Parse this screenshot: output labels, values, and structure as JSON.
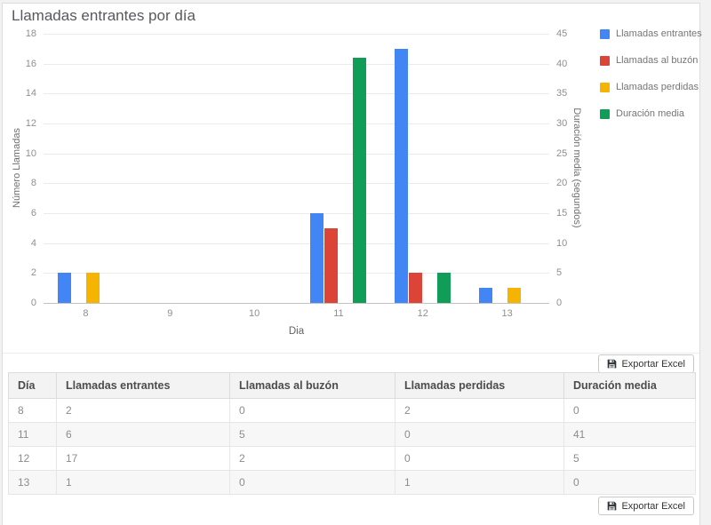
{
  "title": "Llamadas entrantes por día",
  "export_button_label": "Exportar Excel",
  "chart_data": {
    "type": "bar",
    "title": "Llamadas entrantes por día",
    "categories": [
      "8",
      "9",
      "10",
      "11",
      "12",
      "13"
    ],
    "xlabel": "Dia",
    "grid": true,
    "legend_position": "right",
    "y_left": {
      "label": "Número Llamadas",
      "max": 18,
      "ticks": [
        0,
        2,
        4,
        6,
        8,
        10,
        12,
        14,
        16,
        18
      ]
    },
    "y_right": {
      "label": "Duración media (segundos)",
      "max": 45,
      "ticks": [
        0,
        5,
        10,
        15,
        20,
        25,
        30,
        35,
        40,
        45
      ]
    },
    "series": [
      {
        "name": "Llamadas entrantes",
        "color": "#4285F4",
        "axis": "left",
        "values": [
          2,
          0,
          0,
          6,
          17,
          1
        ]
      },
      {
        "name": "Llamadas al buzón",
        "color": "#DB4437",
        "axis": "left",
        "values": [
          0,
          0,
          0,
          5,
          2,
          0
        ]
      },
      {
        "name": "Llamadas perdidas",
        "color": "#F4B400",
        "axis": "left",
        "values": [
          2,
          0,
          0,
          0,
          0,
          1
        ]
      },
      {
        "name": "Duración media",
        "color": "#0F9D58",
        "axis": "right",
        "values": [
          0,
          0,
          0,
          41,
          5,
          0
        ]
      }
    ]
  },
  "table": {
    "headers": [
      "Día",
      "Llamadas entrantes",
      "Llamadas al buzón",
      "Llamadas perdidas",
      "Duración media"
    ],
    "rows": [
      [
        "8",
        "2",
        "0",
        "2",
        "0"
      ],
      [
        "11",
        "6",
        "5",
        "0",
        "41"
      ],
      [
        "12",
        "17",
        "2",
        "0",
        "5"
      ],
      [
        "13",
        "1",
        "0",
        "1",
        "0"
      ]
    ]
  }
}
